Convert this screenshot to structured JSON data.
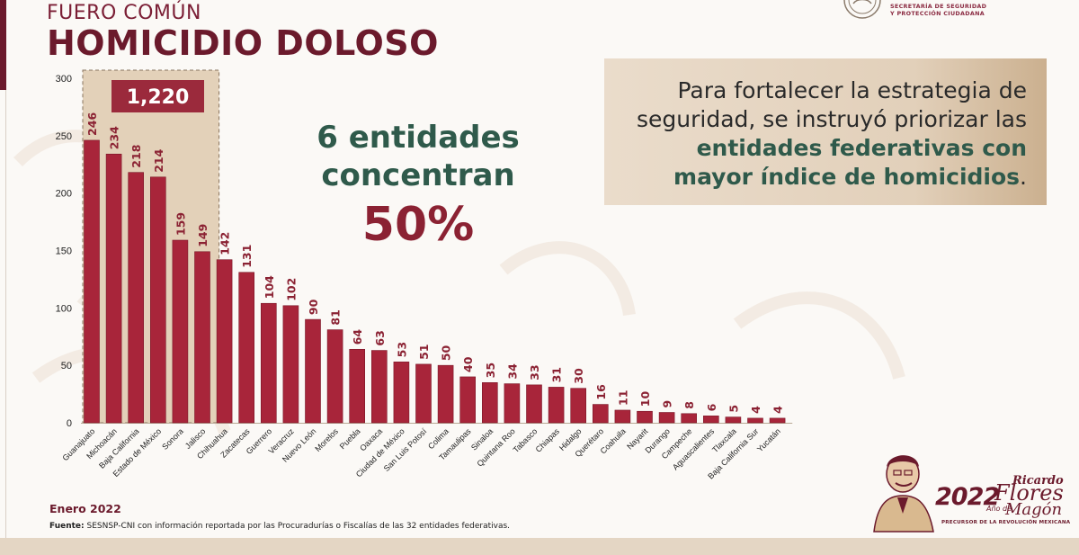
{
  "header": {
    "kicker": "FUERO COMÚN",
    "title": "HOMICIDIO DOLOSO"
  },
  "logo": {
    "line1": "SECRETARÍA DE SEGURIDAD",
    "line2": "Y PROTECCIÓN CIUDADANA"
  },
  "callout": {
    "part1": "Para fortalecer la estrategia de seguridad, se instruyó priorizar las ",
    "emphasis": "entidades federativas con mayor índice de homicidios",
    "part2": "."
  },
  "headline": {
    "line1": "6 entidades",
    "line2": "concentran",
    "percent": "50%"
  },
  "chart_data": {
    "type": "bar",
    "categories": [
      "Guanajuato",
      "Michoacán",
      "Baja California",
      "Estado de México",
      "Sonora",
      "Jalisco",
      "Chihuahua",
      "Zacatecas",
      "Guerrero",
      "Veracruz",
      "Nuevo León",
      "Morelos",
      "Puebla",
      "Oaxaca",
      "Ciudad de México",
      "San Luis Potosí",
      "Colima",
      "Tamaulipas",
      "Sinaloa",
      "Quintana Roo",
      "Tabasco",
      "Chiapas",
      "Hidalgo",
      "Querétaro",
      "Coahuila",
      "Nayarit",
      "Durango",
      "Campeche",
      "Aguascalientes",
      "Tlaxcala",
      "Baja California Sur",
      "Yucatán"
    ],
    "values": [
      246,
      234,
      218,
      214,
      159,
      149,
      142,
      131,
      104,
      102,
      90,
      81,
      64,
      63,
      53,
      51,
      50,
      40,
      35,
      34,
      33,
      31,
      30,
      16,
      11,
      10,
      9,
      8,
      6,
      5,
      4,
      4
    ],
    "yticks": [
      0,
      50,
      100,
      150,
      200,
      250,
      300
    ],
    "ylim": [
      0,
      300
    ],
    "highlight_count": 6,
    "highlight_total": "1,220",
    "colors": {
      "bar": "#a8253a",
      "highlight_box": "#9b2a3c",
      "label": "#8b2233"
    }
  },
  "footer": {
    "date": "Enero 2022",
    "source_label": "Fuente:",
    "source_text": " SESNSP-CNI con información reportada por las Procuradurías o Fiscalías de las 32 entidades federativas."
  },
  "badge": {
    "year": "2022",
    "anio": "Año de",
    "name1": "Ricardo",
    "name2": "Flores",
    "name3": "Magón",
    "tagline": "PRECURSOR DE LA REVOLUCIÓN MEXICANA"
  }
}
